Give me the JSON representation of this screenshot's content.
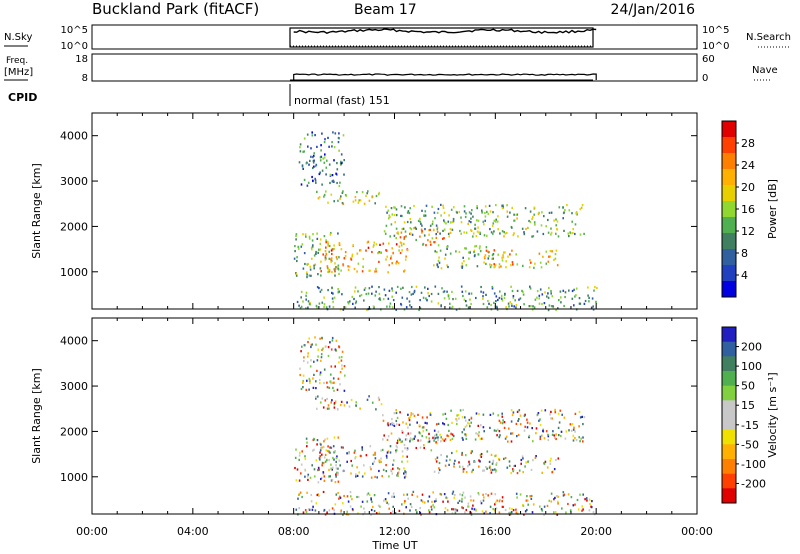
{
  "header": {
    "station": "Buckland Park (fitACF)",
    "beam": "Beam 17",
    "date": "24/Jan/2016"
  },
  "time_axis": {
    "label": "Time UT",
    "ticks": [
      "00:00",
      "04:00",
      "08:00",
      "12:00",
      "16:00",
      "20:00",
      "00:00"
    ],
    "tick_hours": [
      0,
      4,
      8,
      12,
      16,
      20,
      24
    ],
    "range_hours": [
      0,
      24
    ],
    "data_range_hours": [
      8,
      20
    ]
  },
  "noise_panel": {
    "left_label": "N.Sky",
    "right_label": "N.Search",
    "left_ticks": [
      "10^5",
      "10^0"
    ],
    "right_ticks": [
      "10^5",
      "10^0"
    ]
  },
  "freq_panel": {
    "left_label_1": "Freq.",
    "left_label_2": "[MHz]",
    "right_label": "Nave",
    "left_ticks": [
      "18",
      "8"
    ],
    "right_ticks": [
      "60",
      "0"
    ]
  },
  "cpid": {
    "label": "CPID",
    "program": "normal (fast) 151"
  },
  "power_panel": {
    "ylabel": "Slant Range [km]",
    "yticks": [
      1000,
      2000,
      3000,
      4000
    ],
    "ylim": [
      180,
      4500
    ],
    "colorbar_label": "Power [dB]",
    "colorbar_ticks": [
      "28",
      "24",
      "20",
      "16",
      "12",
      "8",
      "4"
    ],
    "colors": [
      "#e00000",
      "#ff4000",
      "#ff8000",
      "#ffb000",
      "#e8d000",
      "#90d830",
      "#50b050",
      "#408060",
      "#3060a0",
      "#2040c0",
      "#0000e0"
    ]
  },
  "velocity_panel": {
    "ylabel": "Slant Range [km]",
    "yticks": [
      1000,
      2000,
      3000,
      4000
    ],
    "ylim": [
      180,
      4500
    ],
    "colorbar_label": "Velocity [m s⁻¹]",
    "colorbar_ticks": [
      "200",
      "100",
      "50",
      "15",
      "-15",
      "-50",
      "-100",
      "-200"
    ],
    "colors": [
      "#2020c0",
      "#3060a0",
      "#408060",
      "#50b050",
      "#80d040",
      "#c8c8c8",
      "#c8c8c8",
      "#f0e000",
      "#ffb000",
      "#ff8000",
      "#ff4000",
      "#e00000"
    ]
  },
  "chart_data": [
    {
      "type": "heatmap",
      "title": "Power",
      "x_unit": "hours UT",
      "y_unit": "km",
      "xlim": [
        0,
        24
      ],
      "ylim": [
        180,
        4500
      ],
      "scatter_regions": [
        {
          "t0": 8.0,
          "t1": 9.8,
          "r0": 900,
          "r1": 1900,
          "value_db": 14
        },
        {
          "t0": 9.0,
          "t1": 12.5,
          "r0": 1000,
          "r1": 1700,
          "value_db": 22
        },
        {
          "t0": 12.0,
          "t1": 14.0,
          "r0": 1600,
          "r1": 2000,
          "value_db": 20
        },
        {
          "t0": 13.5,
          "t1": 16.0,
          "r0": 1100,
          "r1": 1600,
          "value_db": 14
        },
        {
          "t0": 15.5,
          "t1": 18.5,
          "r0": 1100,
          "r1": 1500,
          "value_db": 20
        },
        {
          "t0": 8.2,
          "t1": 10.0,
          "r0": 2900,
          "r1": 4100,
          "value_db": 10
        },
        {
          "t0": 8.8,
          "t1": 11.5,
          "r0": 2500,
          "r1": 2800,
          "value_db": 17
        },
        {
          "t0": 11.5,
          "t1": 19.5,
          "r0": 1800,
          "r1": 2500,
          "value_db": 14
        },
        {
          "t0": 8.0,
          "t1": 20.0,
          "r0": 180,
          "r1": 700,
          "value_db": 12
        }
      ]
    },
    {
      "type": "heatmap",
      "title": "Velocity",
      "x_unit": "hours UT",
      "y_unit": "km",
      "xlim": [
        0,
        24
      ],
      "ylim": [
        180,
        4500
      ],
      "scatter_regions": [
        {
          "t0": 8.0,
          "t1": 9.8,
          "r0": 900,
          "r1": 1900,
          "value_ms": 0
        },
        {
          "t0": 9.0,
          "t1": 12.5,
          "r0": 1000,
          "r1": 1700,
          "value_ms": 0
        },
        {
          "t0": 12.0,
          "t1": 14.0,
          "r0": 1600,
          "r1": 2000,
          "value_ms": 0
        },
        {
          "t0": 13.5,
          "t1": 16.0,
          "r0": 1100,
          "r1": 1600,
          "value_ms": 20
        },
        {
          "t0": 15.5,
          "t1": 18.5,
          "r0": 1100,
          "r1": 1500,
          "value_ms": 30
        },
        {
          "t0": 8.2,
          "t1": 10.0,
          "r0": 2900,
          "r1": 4100,
          "value_ms": 0
        },
        {
          "t0": 8.8,
          "t1": 11.5,
          "r0": 2500,
          "r1": 2800,
          "value_ms": 0
        },
        {
          "t0": 11.5,
          "t1": 19.5,
          "r0": 1800,
          "r1": 2500,
          "value_ms": 0
        },
        {
          "t0": 8.0,
          "t1": 20.0,
          "r0": 180,
          "r1": 700,
          "value_ms": 0
        }
      ]
    }
  ]
}
